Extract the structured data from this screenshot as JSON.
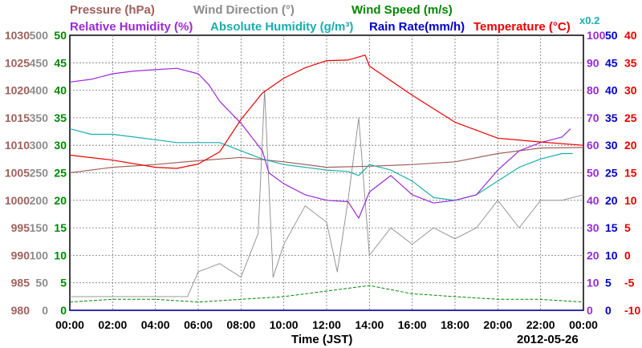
{
  "chart_data": {
    "type": "line",
    "date_label": "2012-05-26",
    "xlabel": "Time (JST)",
    "x_ticks": [
      "00:00",
      "02:00",
      "04:00",
      "06:00",
      "08:00",
      "10:00",
      "12:00",
      "14:00",
      "16:00",
      "18:00",
      "20:00",
      "22:00",
      "00:00"
    ],
    "x_range_hours": [
      0,
      24
    ],
    "grid": true,
    "legend": {
      "row1": [
        {
          "key": "pressure",
          "text": "Pressure (hPa)",
          "color": "#a0605a"
        },
        {
          "key": "wind_dir",
          "text": "Wind Direction (°)",
          "color": "#8c8c8c"
        },
        {
          "key": "wind_speed",
          "text": "Wind Speed (m/s)",
          "color": "#008800"
        }
      ],
      "row2": [
        {
          "key": "rh",
          "text": "Relative Humidity (%)",
          "color": "#9a2ad8"
        },
        {
          "key": "ah",
          "text": "Absolute Humidity (g/m³)",
          "color": "#1aaeae"
        },
        {
          "key": "ah_scale",
          "text": "x0.2",
          "color": "#1aaeae"
        },
        {
          "key": "rain",
          "text": "Rain Rate(mm/h)",
          "color": "#0000cc"
        },
        {
          "key": "temp",
          "text": "Temperature (°C)",
          "color": "#ee0000"
        }
      ]
    },
    "left_axes": [
      {
        "key": "pressure",
        "color": "#a0605a",
        "ticks": [
          "1030",
          "1025",
          "1020",
          "1015",
          "1010",
          "1005",
          "1000",
          "995",
          "990",
          "985",
          "980"
        ]
      },
      {
        "key": "wind_dir",
        "color": "#8c8c8c",
        "ticks": [
          "500",
          "450",
          "400",
          "350",
          "300",
          "250",
          "200",
          "150",
          "100",
          "50",
          "0"
        ]
      },
      {
        "key": "wind_speed",
        "color": "#008800",
        "ticks": [
          "50",
          "45",
          "40",
          "35",
          "30",
          "25",
          "20",
          "15",
          "10",
          "5",
          "0"
        ]
      }
    ],
    "right_axes": [
      {
        "key": "rh",
        "color": "#9a2ad8",
        "ticks": [
          "100",
          "90",
          "80",
          "70",
          "60",
          "50",
          "40",
          "30",
          "20",
          "10",
          "0"
        ]
      },
      {
        "key": "rain",
        "color": "#0000cc",
        "ticks": [
          "50",
          "45",
          "40",
          "35",
          "30",
          "25",
          "20",
          "15",
          "10",
          "5",
          "0"
        ]
      },
      {
        "key": "temp",
        "color": "#ee0000",
        "ticks": [
          "40",
          "35",
          "30",
          "25",
          "20",
          "15",
          "10",
          "5",
          "0",
          "-5",
          "-10"
        ]
      }
    ],
    "axes_ranges": {
      "pressure": [
        980,
        1030
      ],
      "wind_dir": [
        0,
        500
      ],
      "wind_speed": [
        0,
        50
      ],
      "rh": [
        0,
        100
      ],
      "ah_x5": [
        0,
        100
      ],
      "rain": [
        0,
        50
      ],
      "temp": [
        -10,
        40
      ]
    },
    "series": [
      {
        "name": "Temperature (°C)",
        "key": "temp",
        "color": "#ee0000",
        "x": [
          0,
          2,
          4,
          5,
          6,
          7,
          8,
          9,
          10,
          11,
          12,
          13,
          13.8,
          14,
          16,
          18,
          20,
          22,
          24
        ],
        "y": [
          18.2,
          17.3,
          16.0,
          15.8,
          16.6,
          18.8,
          24.7,
          29.5,
          32.2,
          34.1,
          35.4,
          35.5,
          36.4,
          34.4,
          29.1,
          24.2,
          21.3,
          20.6,
          20.0
        ]
      },
      {
        "name": "Relative Humidity (%)",
        "key": "rh",
        "color": "#9a2ad8",
        "x": [
          0,
          1,
          2,
          3,
          4,
          5,
          6,
          6.5,
          7,
          8,
          9,
          9.3,
          10,
          11,
          12,
          13,
          13.5,
          14,
          15,
          16,
          17,
          18,
          19,
          20,
          21,
          22,
          23,
          23.4
        ],
        "y": [
          83,
          84,
          86,
          87,
          87.5,
          88,
          86,
          82,
          76,
          68,
          58,
          50,
          46,
          42,
          40,
          39.5,
          33.5,
          43,
          49,
          42,
          39,
          40,
          42,
          51,
          58,
          61,
          63,
          66
        ]
      },
      {
        "name": "Absolute Humidity (g/m³) x0.2",
        "key": "ah",
        "color": "#1aaeae",
        "x": [
          0,
          1,
          2,
          3,
          4,
          5,
          6,
          7,
          8,
          9,
          10,
          11,
          12,
          13,
          13.5,
          14,
          15,
          16,
          17,
          18,
          19,
          20,
          21,
          22,
          23,
          23.5
        ],
        "y": [
          66,
          64,
          64,
          63,
          62,
          61,
          61,
          61,
          58,
          55,
          53,
          52,
          51,
          50.5,
          49,
          53,
          51,
          47,
          41,
          40,
          42,
          47,
          52,
          55,
          57,
          57
        ]
      },
      {
        "name": "Pressure (hPa)",
        "key": "pressure",
        "color": "#a0605a",
        "x": [
          0,
          2,
          4,
          6,
          8,
          10,
          12,
          14,
          16,
          18,
          20,
          22,
          24
        ],
        "y": [
          1005,
          1006,
          1006.5,
          1007.2,
          1007.8,
          1007.0,
          1006.0,
          1006.2,
          1006.5,
          1007.0,
          1008.5,
          1009.5,
          1009.6
        ]
      },
      {
        "name": "Wind Direction (°)",
        "key": "wind_dir",
        "color": "#8c8c8c",
        "x": [
          0,
          2,
          4,
          5.5,
          6,
          7,
          8,
          8.8,
          9.1,
          9.5,
          10,
          11,
          12,
          12.5,
          13,
          13.5,
          14,
          15,
          16,
          17,
          18,
          19,
          20,
          21,
          22,
          23,
          24
        ],
        "y": [
          25,
          25,
          25,
          25,
          70,
          85,
          60,
          140,
          400,
          60,
          120,
          190,
          160,
          70,
          200,
          350,
          100,
          150,
          120,
          150,
          130,
          150,
          200,
          150,
          200,
          200,
          210
        ]
      },
      {
        "name": "Wind Speed (m/s)",
        "key": "wind_speed",
        "color": "#008800",
        "x": [
          0,
          2,
          4,
          6,
          8,
          10,
          12,
          14,
          16,
          18,
          20,
          22,
          24
        ],
        "y": [
          1.5,
          2.0,
          2.0,
          1.5,
          2.0,
          2.5,
          3.5,
          4.5,
          3.0,
          2.5,
          2.0,
          2.0,
          1.5
        ]
      },
      {
        "name": "Rain Rate(mm/h)",
        "key": "rain",
        "color": "#0000cc",
        "x": [
          0,
          24
        ],
        "y": [
          0,
          0
        ]
      }
    ]
  }
}
